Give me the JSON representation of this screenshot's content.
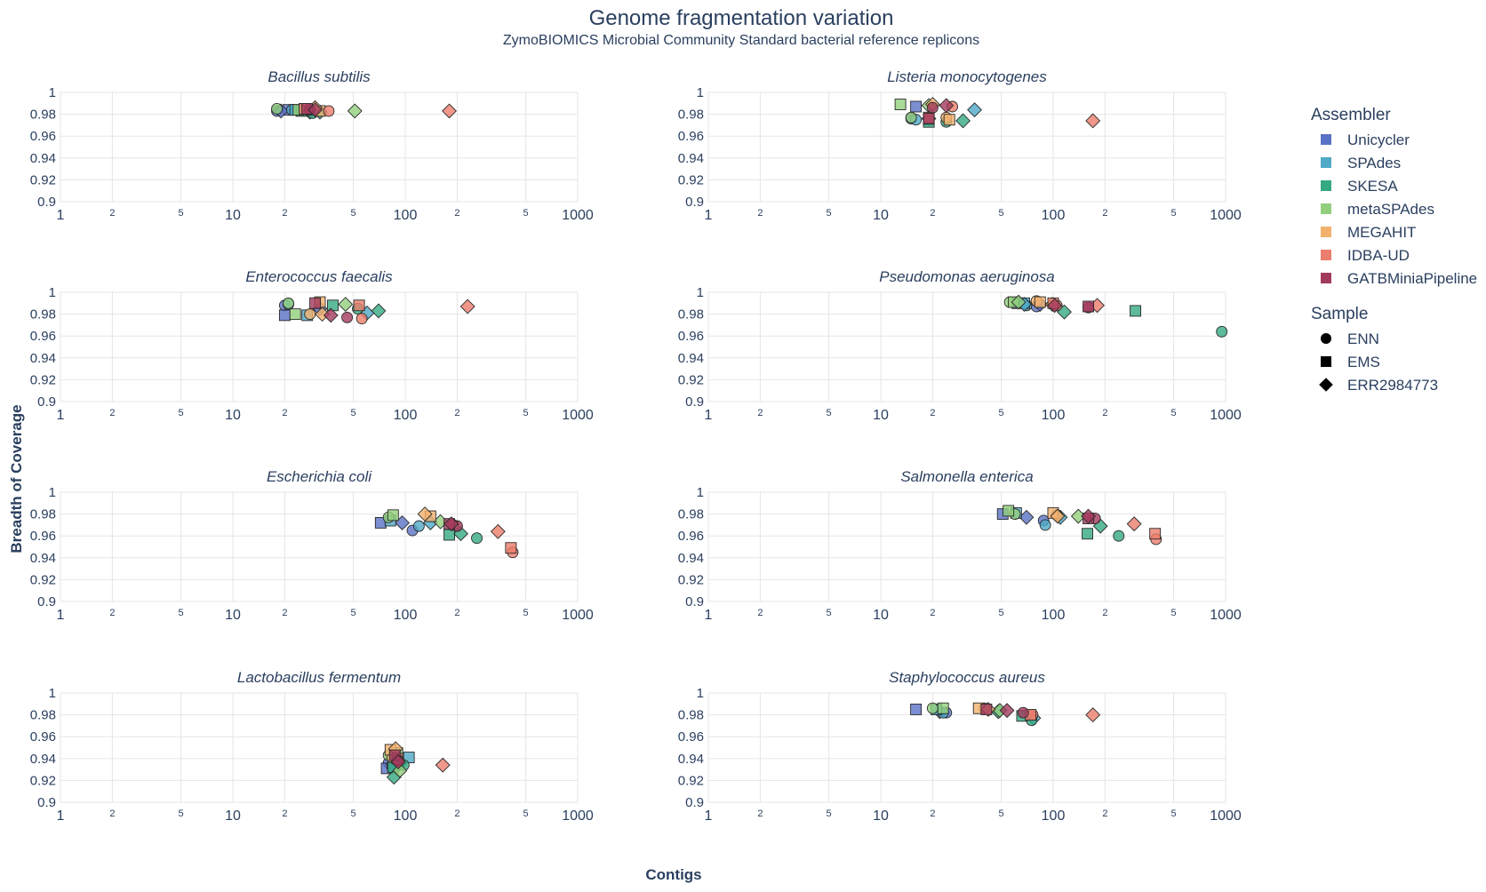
{
  "title": "Genome fragmentation variation",
  "subtitle": "ZymoBIOMICS Microbial Community Standard bacterial reference replicons",
  "xlabel": "Contigs",
  "ylabel": "Breadth of Coverage",
  "legend": {
    "assembler_title": "Assembler",
    "assemblers": [
      {
        "name": "Unicycler",
        "color": "#5a72c5"
      },
      {
        "name": "SPAdes",
        "color": "#4fa9c7"
      },
      {
        "name": "SKESA",
        "color": "#35a982"
      },
      {
        "name": "metaSPAdes",
        "color": "#92cf7d"
      },
      {
        "name": "MEGAHIT",
        "color": "#f2b26e"
      },
      {
        "name": "IDBA-UD",
        "color": "#eb7d6c"
      },
      {
        "name": "GATBMiniaPipeline",
        "color": "#a23a5c"
      }
    ],
    "sample_title": "Sample",
    "samples": [
      {
        "name": "ENN",
        "symbol": "circle"
      },
      {
        "name": "EMS",
        "symbol": "square"
      },
      {
        "name": "ERR2984773",
        "symbol": "diamond"
      }
    ]
  },
  "chart_data": {
    "type": "scatter",
    "xscale": "log",
    "xlim": [
      1,
      1000
    ],
    "ylim": [
      0.9,
      1
    ],
    "x_ticks_major": [
      "1",
      "10",
      "100",
      "1000"
    ],
    "x_ticks_minor": [
      "2",
      "5",
      "2",
      "5",
      "2",
      "5"
    ],
    "y_ticks": [
      "0.9",
      "0.92",
      "0.94",
      "0.96",
      "0.98",
      "1"
    ],
    "grid": true,
    "legend_position": "right",
    "panels": [
      {
        "title": "Bacillus subtilis",
        "points": [
          [
            "Unicycler",
            "ENN",
            18,
            0.983
          ],
          [
            "Unicycler",
            "EMS",
            21,
            0.984
          ],
          [
            "Unicycler",
            "ERR2984773",
            19,
            0.983
          ],
          [
            "SPAdes",
            "ENN",
            22,
            0.984
          ],
          [
            "SPAdes",
            "EMS",
            23,
            0.984
          ],
          [
            "SPAdes",
            "ERR2984773",
            28,
            0.982
          ],
          [
            "SKESA",
            "ENN",
            29,
            0.981
          ],
          [
            "SKESA",
            "EMS",
            25,
            0.983
          ],
          [
            "SKESA",
            "ERR2984773",
            32,
            0.982
          ],
          [
            "metaSPAdes",
            "ENN",
            18,
            0.985
          ],
          [
            "metaSPAdes",
            "EMS",
            24,
            0.984
          ],
          [
            "metaSPAdes",
            "ERR2984773",
            51,
            0.983
          ],
          [
            "MEGAHIT",
            "ENN",
            27,
            0.984
          ],
          [
            "MEGAHIT",
            "EMS",
            32,
            0.983
          ],
          [
            "MEGAHIT",
            "ERR2984773",
            30,
            0.986
          ],
          [
            "IDBA-UD",
            "ENN",
            36,
            0.983
          ],
          [
            "IDBA-UD",
            "EMS",
            26,
            0.985
          ],
          [
            "IDBA-UD",
            "ERR2984773",
            180,
            0.983
          ],
          [
            "GATBMiniaPipeline",
            "ENN",
            28,
            0.984
          ],
          [
            "GATBMiniaPipeline",
            "EMS",
            27,
            0.985
          ],
          [
            "GATBMiniaPipeline",
            "ERR2984773",
            30,
            0.984
          ]
        ]
      },
      {
        "title": "Listeria monocytogenes",
        "points": [
          [
            "Unicycler",
            "ENN",
            15,
            0.976
          ],
          [
            "Unicycler",
            "EMS",
            16,
            0.987
          ],
          [
            "Unicycler",
            "ERR2984773",
            19,
            0.976
          ],
          [
            "SPAdes",
            "ENN",
            16,
            0.975
          ],
          [
            "SPAdes",
            "EMS",
            19,
            0.975
          ],
          [
            "SPAdes",
            "ERR2984773",
            35,
            0.984
          ],
          [
            "SKESA",
            "ENN",
            24,
            0.973
          ],
          [
            "SKESA",
            "EMS",
            19,
            0.973
          ],
          [
            "SKESA",
            "ERR2984773",
            30,
            0.974
          ],
          [
            "metaSPAdes",
            "ENN",
            15,
            0.977
          ],
          [
            "metaSPAdes",
            "EMS",
            13,
            0.989
          ],
          [
            "metaSPAdes",
            "ERR2984773",
            19,
            0.988
          ],
          [
            "MEGAHIT",
            "ENN",
            24,
            0.977
          ],
          [
            "MEGAHIT",
            "EMS",
            25,
            0.975
          ],
          [
            "MEGAHIT",
            "ERR2984773",
            20,
            0.989
          ],
          [
            "IDBA-UD",
            "ENN",
            26,
            0.987
          ],
          [
            "IDBA-UD",
            "EMS",
            19,
            0.977
          ],
          [
            "IDBA-UD",
            "ERR2984773",
            170,
            0.974
          ],
          [
            "GATBMiniaPipeline",
            "ENN",
            20,
            0.986
          ],
          [
            "GATBMiniaPipeline",
            "EMS",
            19,
            0.976
          ],
          [
            "GATBMiniaPipeline",
            "ERR2984773",
            24,
            0.988
          ]
        ]
      },
      {
        "title": "Enterococcus faecalis",
        "points": [
          [
            "Unicycler",
            "ENN",
            20,
            0.988
          ],
          [
            "Unicycler",
            "EMS",
            20,
            0.979
          ],
          [
            "Unicycler",
            "ERR2984773",
            32,
            0.985
          ],
          [
            "SPAdes",
            "ENN",
            21,
            0.989
          ],
          [
            "SPAdes",
            "EMS",
            27,
            0.979
          ],
          [
            "SPAdes",
            "ERR2984773",
            60,
            0.981
          ],
          [
            "SKESA",
            "ENN",
            53,
            0.985
          ],
          [
            "SKESA",
            "EMS",
            38,
            0.988
          ],
          [
            "SKESA",
            "ERR2984773",
            70,
            0.983
          ],
          [
            "metaSPAdes",
            "ENN",
            21,
            0.99
          ],
          [
            "metaSPAdes",
            "EMS",
            23,
            0.98
          ],
          [
            "metaSPAdes",
            "ERR2984773",
            45,
            0.989
          ],
          [
            "MEGAHIT",
            "ENN",
            28,
            0.98
          ],
          [
            "MEGAHIT",
            "EMS",
            32,
            0.991
          ],
          [
            "MEGAHIT",
            "ERR2984773",
            33,
            0.98
          ],
          [
            "IDBA-UD",
            "ENN",
            56,
            0.976
          ],
          [
            "IDBA-UD",
            "EMS",
            54,
            0.988
          ],
          [
            "IDBA-UD",
            "ERR2984773",
            230,
            0.987
          ],
          [
            "GATBMiniaPipeline",
            "ENN",
            46,
            0.977
          ],
          [
            "GATBMiniaPipeline",
            "EMS",
            30,
            0.99
          ],
          [
            "GATBMiniaPipeline",
            "ERR2984773",
            37,
            0.979
          ]
        ]
      },
      {
        "title": "Pseudomonas aeruginosa",
        "points": [
          [
            "Unicycler",
            "ENN",
            80,
            0.987
          ],
          [
            "Unicycler",
            "EMS",
            62,
            0.99
          ],
          [
            "Unicycler",
            "ERR2984773",
            84,
            0.989
          ],
          [
            "SPAdes",
            "ENN",
            70,
            0.988
          ],
          [
            "SPAdes",
            "EMS",
            68,
            0.99
          ],
          [
            "SPAdes",
            "ERR2984773",
            68,
            0.989
          ],
          [
            "SKESA",
            "ENN",
            950,
            0.964
          ],
          [
            "SKESA",
            "EMS",
            300,
            0.983
          ],
          [
            "SKESA",
            "ERR2984773",
            116,
            0.982
          ],
          [
            "metaSPAdes",
            "ENN",
            56,
            0.991
          ],
          [
            "metaSPAdes",
            "EMS",
            59,
            0.991
          ],
          [
            "metaSPAdes",
            "ERR2984773",
            63,
            0.991
          ],
          [
            "MEGAHIT",
            "ENN",
            80,
            0.992
          ],
          [
            "MEGAHIT",
            "EMS",
            84,
            0.991
          ],
          [
            "MEGAHIT",
            "ERR2984773",
            99,
            0.989
          ],
          [
            "IDBA-UD",
            "ENN",
            105,
            0.988
          ],
          [
            "IDBA-UD",
            "EMS",
            100,
            0.99
          ],
          [
            "IDBA-UD",
            "ERR2984773",
            180,
            0.988
          ],
          [
            "GATBMiniaPipeline",
            "ENN",
            160,
            0.986
          ],
          [
            "GATBMiniaPipeline",
            "EMS",
            160,
            0.987
          ],
          [
            "GATBMiniaPipeline",
            "ERR2984773",
            102,
            0.988
          ]
        ]
      },
      {
        "title": "Escherichia coli",
        "points": [
          [
            "Unicycler",
            "ENN",
            110,
            0.965
          ],
          [
            "Unicycler",
            "EMS",
            72,
            0.972
          ],
          [
            "Unicycler",
            "ERR2984773",
            96,
            0.972
          ],
          [
            "SPAdes",
            "ENN",
            120,
            0.969
          ],
          [
            "SPAdes",
            "EMS",
            82,
            0.974
          ],
          [
            "SPAdes",
            "ERR2984773",
            140,
            0.972
          ],
          [
            "SKESA",
            "ENN",
            260,
            0.958
          ],
          [
            "SKESA",
            "EMS",
            180,
            0.961
          ],
          [
            "SKESA",
            "ERR2984773",
            210,
            0.962
          ],
          [
            "metaSPAdes",
            "ENN",
            80,
            0.977
          ],
          [
            "metaSPAdes",
            "EMS",
            85,
            0.979
          ],
          [
            "metaSPAdes",
            "ERR2984773",
            160,
            0.973
          ],
          [
            "MEGAHIT",
            "ENN",
            190,
            0.97
          ],
          [
            "MEGAHIT",
            "EMS",
            140,
            0.978
          ],
          [
            "MEGAHIT",
            "ERR2984773",
            130,
            0.98
          ],
          [
            "IDBA-UD",
            "ENN",
            420,
            0.945
          ],
          [
            "IDBA-UD",
            "EMS",
            410,
            0.949
          ],
          [
            "IDBA-UD",
            "ERR2984773",
            345,
            0.964
          ],
          [
            "GATBMiniaPipeline",
            "ENN",
            200,
            0.969
          ],
          [
            "GATBMiniaPipeline",
            "EMS",
            180,
            0.971
          ],
          [
            "GATBMiniaPipeline",
            "ERR2984773",
            185,
            0.971
          ]
        ]
      },
      {
        "title": "Salmonella enterica",
        "points": [
          [
            "Unicycler",
            "ENN",
            88,
            0.974
          ],
          [
            "Unicycler",
            "EMS",
            51,
            0.98
          ],
          [
            "Unicycler",
            "ERR2984773",
            70,
            0.977
          ],
          [
            "SPAdes",
            "ENN",
            90,
            0.97
          ],
          [
            "SPAdes",
            "EMS",
            61,
            0.981
          ],
          [
            "SPAdes",
            "ERR2984773",
            110,
            0.977
          ],
          [
            "SKESA",
            "ENN",
            240,
            0.96
          ],
          [
            "SKESA",
            "EMS",
            158,
            0.962
          ],
          [
            "SKESA",
            "ERR2984773",
            188,
            0.969
          ],
          [
            "metaSPAdes",
            "ENN",
            60,
            0.98
          ],
          [
            "metaSPAdes",
            "EMS",
            55,
            0.983
          ],
          [
            "metaSPAdes",
            "ERR2984773",
            140,
            0.978
          ],
          [
            "MEGAHIT",
            "ENN",
            105,
            0.979
          ],
          [
            "MEGAHIT",
            "EMS",
            100,
            0.981
          ],
          [
            "MEGAHIT",
            "ERR2984773",
            106,
            0.978
          ],
          [
            "IDBA-UD",
            "ENN",
            395,
            0.957
          ],
          [
            "IDBA-UD",
            "EMS",
            390,
            0.962
          ],
          [
            "IDBA-UD",
            "ERR2984773",
            295,
            0.971
          ],
          [
            "GATBMiniaPipeline",
            "ENN",
            175,
            0.976
          ],
          [
            "GATBMiniaPipeline",
            "EMS",
            160,
            0.976
          ],
          [
            "GATBMiniaPipeline",
            "ERR2984773",
            160,
            0.978
          ]
        ]
      },
      {
        "title": "Lactobacillus fermentum",
        "points": [
          [
            "Unicycler",
            "ENN",
            80,
            0.936
          ],
          [
            "Unicycler",
            "EMS",
            78,
            0.931
          ],
          [
            "Unicycler",
            "ERR2984773",
            85,
            0.935
          ],
          [
            "SPAdes",
            "ENN",
            84,
            0.932
          ],
          [
            "SPAdes",
            "EMS",
            105,
            0.941
          ],
          [
            "SPAdes",
            "ERR2984773",
            92,
            0.935
          ],
          [
            "SKESA",
            "ENN",
            98,
            0.934
          ],
          [
            "SKESA",
            "EMS",
            85,
            0.932
          ],
          [
            "SKESA",
            "ERR2984773",
            86,
            0.923
          ],
          [
            "metaSPAdes",
            "ENN",
            80,
            0.943
          ],
          [
            "metaSPAdes",
            "EMS",
            90,
            0.945
          ],
          [
            "metaSPAdes",
            "ERR2984773",
            93,
            0.929
          ],
          [
            "MEGAHIT",
            "ENN",
            84,
            0.941
          ],
          [
            "MEGAHIT",
            "EMS",
            82,
            0.948
          ],
          [
            "MEGAHIT",
            "ERR2984773",
            88,
            0.949
          ],
          [
            "IDBA-UD",
            "ENN",
            92,
            0.938
          ],
          [
            "IDBA-UD",
            "EMS",
            90,
            0.94
          ],
          [
            "IDBA-UD",
            "ERR2984773",
            165,
            0.934
          ],
          [
            "GATBMiniaPipeline",
            "ENN",
            90,
            0.939
          ],
          [
            "GATBMiniaPipeline",
            "EMS",
            87,
            0.943
          ],
          [
            "GATBMiniaPipeline",
            "ERR2984773",
            91,
            0.937
          ]
        ]
      },
      {
        "title": "Staphylococcus aureus",
        "points": [
          [
            "Unicycler",
            "ENN",
            24,
            0.982
          ],
          [
            "Unicycler",
            "EMS",
            16,
            0.985
          ],
          [
            "Unicycler",
            "ERR2984773",
            22,
            0.983
          ],
          [
            "SPAdes",
            "ENN",
            23,
            0.982
          ],
          [
            "SPAdes",
            "EMS",
            21,
            0.985
          ],
          [
            "SPAdes",
            "ERR2984773",
            77,
            0.977
          ],
          [
            "SKESA",
            "ENN",
            75,
            0.975
          ],
          [
            "SKESA",
            "EMS",
            66,
            0.979
          ],
          [
            "SKESA",
            "ERR2984773",
            48,
            0.983
          ],
          [
            "metaSPAdes",
            "ENN",
            20,
            0.986
          ],
          [
            "metaSPAdes",
            "EMS",
            23,
            0.986
          ],
          [
            "metaSPAdes",
            "ERR2984773",
            49,
            0.984
          ],
          [
            "MEGAHIT",
            "ENN",
            40,
            0.986
          ],
          [
            "MEGAHIT",
            "EMS",
            37,
            0.986
          ],
          [
            "MEGAHIT",
            "ERR2984773",
            42,
            0.985
          ],
          [
            "IDBA-UD",
            "ENN",
            76,
            0.98
          ],
          [
            "IDBA-UD",
            "EMS",
            74,
            0.98
          ],
          [
            "IDBA-UD",
            "ERR2984773",
            170,
            0.98
          ],
          [
            "GATBMiniaPipeline",
            "ENN",
            67,
            0.982
          ],
          [
            "GATBMiniaPipeline",
            "EMS",
            41,
            0.985
          ],
          [
            "GATBMiniaPipeline",
            "ERR2984773",
            54,
            0.984
          ]
        ]
      }
    ]
  }
}
